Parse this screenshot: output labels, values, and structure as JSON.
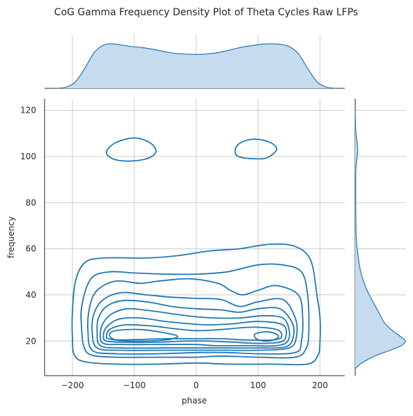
{
  "chart_data": {
    "type": "kde-joint",
    "title": "CoG Gamma Frequency Density Plot of Theta Cycles Raw LFPs",
    "xlabel": "phase",
    "ylabel": "frequency",
    "xlim": [
      -245,
      240
    ],
    "ylim": [
      5,
      125
    ],
    "xticks": [
      -200,
      -100,
      0,
      100,
      200
    ],
    "yticks": [
      20,
      40,
      60,
      80,
      100,
      120
    ],
    "xtick_labels": [
      "−200",
      "−100",
      "0",
      "100",
      "200"
    ],
    "ytick_labels": [
      "20",
      "40",
      "60",
      "80",
      "100",
      "120"
    ],
    "grid": true,
    "color": "#1f77b4",
    "fill_color": "#c6dbee",
    "main_contours": [
      [
        [
          -100,
          108
        ],
        [
          -75,
          106
        ],
        [
          -65,
          102
        ],
        [
          -80,
          99
        ],
        [
          -110,
          98
        ],
        [
          -135,
          99
        ],
        [
          -145,
          102
        ],
        [
          -130,
          106
        ],
        [
          -100,
          108
        ]
      ],
      [
        [
          95,
          107.5
        ],
        [
          120,
          106
        ],
        [
          130,
          103
        ],
        [
          115,
          99.5
        ],
        [
          95,
          99
        ],
        [
          68,
          100
        ],
        [
          63,
          103
        ],
        [
          72,
          106
        ],
        [
          95,
          107.5
        ]
      ],
      [
        [
          -200,
          21
        ],
        [
          -200,
          33
        ],
        [
          -195,
          46
        ],
        [
          -180,
          54
        ],
        [
          -150,
          56
        ],
        [
          -80,
          56
        ],
        [
          -30,
          57
        ],
        [
          20,
          59
        ],
        [
          70,
          60
        ],
        [
          120,
          62
        ],
        [
          160,
          61
        ],
        [
          185,
          55
        ],
        [
          195,
          40
        ],
        [
          200,
          30
        ],
        [
          200,
          20
        ],
        [
          197,
          14
        ],
        [
          180,
          10
        ],
        [
          120,
          10
        ],
        [
          50,
          10
        ],
        [
          0,
          10.5
        ],
        [
          -60,
          10
        ],
        [
          -130,
          10
        ],
        [
          -180,
          11
        ],
        [
          -197,
          14
        ],
        [
          -200,
          21
        ]
      ],
      [
        [
          -185,
          25
        ],
        [
          -185,
          35
        ],
        [
          -170,
          47
        ],
        [
          -140,
          50
        ],
        [
          -100,
          49.5
        ],
        [
          -50,
          49
        ],
        [
          0,
          49
        ],
        [
          50,
          50
        ],
        [
          100,
          53
        ],
        [
          140,
          53
        ],
        [
          170,
          50
        ],
        [
          180,
          40
        ],
        [
          182,
          25
        ],
        [
          178,
          17
        ],
        [
          160,
          13
        ],
        [
          100,
          13
        ],
        [
          40,
          13.5
        ],
        [
          0,
          13
        ],
        [
          -60,
          13
        ],
        [
          -130,
          13
        ],
        [
          -170,
          14
        ],
        [
          -182,
          18
        ],
        [
          -185,
          25
        ]
      ],
      [
        [
          -175,
          25
        ],
        [
          -172,
          35
        ],
        [
          -160,
          42
        ],
        [
          -130,
          46
        ],
        [
          -90,
          45
        ],
        [
          -60,
          46
        ],
        [
          -10,
          47
        ],
        [
          35,
          45
        ],
        [
          55,
          42
        ],
        [
          75,
          40
        ],
        [
          100,
          42
        ],
        [
          130,
          44
        ],
        [
          165,
          40
        ],
        [
          172,
          30
        ],
        [
          170,
          20
        ],
        [
          160,
          15
        ],
        [
          100,
          14.5
        ],
        [
          50,
          15
        ],
        [
          0,
          15
        ],
        [
          -60,
          14.5
        ],
        [
          -130,
          14.5
        ],
        [
          -168,
          16
        ],
        [
          -175,
          25
        ]
      ],
      [
        [
          -168,
          24
        ],
        [
          -165,
          32
        ],
        [
          -150,
          38
        ],
        [
          -120,
          41
        ],
        [
          -80,
          40
        ],
        [
          -40,
          39
        ],
        [
          0,
          38.5
        ],
        [
          40,
          38
        ],
        [
          70,
          35
        ],
        [
          100,
          37
        ],
        [
          140,
          38
        ],
        [
          160,
          30
        ],
        [
          162,
          22
        ],
        [
          150,
          17
        ],
        [
          100,
          16
        ],
        [
          50,
          16
        ],
        [
          0,
          16
        ],
        [
          -50,
          16
        ],
        [
          -120,
          16
        ],
        [
          -160,
          17
        ],
        [
          -168,
          24
        ]
      ],
      [
        [
          -160,
          24
        ],
        [
          -158,
          30
        ],
        [
          -145,
          35
        ],
        [
          -120,
          37.5
        ],
        [
          -80,
          37
        ],
        [
          -40,
          35
        ],
        [
          0,
          34
        ],
        [
          40,
          33.5
        ],
        [
          70,
          32.5
        ],
        [
          100,
          34
        ],
        [
          135,
          34
        ],
        [
          155,
          28
        ],
        [
          157,
          22
        ],
        [
          145,
          17.5
        ],
        [
          100,
          17
        ],
        [
          50,
          17
        ],
        [
          0,
          17
        ],
        [
          -50,
          17
        ],
        [
          -120,
          17
        ],
        [
          -155,
          18
        ],
        [
          -160,
          24
        ]
      ],
      [
        [
          -155,
          23
        ],
        [
          -150,
          28
        ],
        [
          -135,
          32
        ],
        [
          -110,
          34
        ],
        [
          -70,
          33
        ],
        [
          -30,
          31.5
        ],
        [
          0,
          30.5
        ],
        [
          30,
          30
        ],
        [
          70,
          30
        ],
        [
          110,
          31
        ],
        [
          140,
          30
        ],
        [
          150,
          25
        ],
        [
          148,
          20
        ],
        [
          130,
          18
        ],
        [
          80,
          18
        ],
        [
          30,
          18
        ],
        [
          0,
          18.5
        ],
        [
          -50,
          18.5
        ],
        [
          -120,
          18.5
        ],
        [
          -150,
          19
        ],
        [
          -155,
          23
        ]
      ],
      [
        [
          -150,
          22
        ],
        [
          -145,
          26
        ],
        [
          -125,
          29.5
        ],
        [
          -90,
          30
        ],
        [
          -50,
          28.5
        ],
        [
          -10,
          27.5
        ],
        [
          20,
          27
        ],
        [
          60,
          27.5
        ],
        [
          100,
          28.5
        ],
        [
          140,
          27
        ],
        [
          145,
          22
        ],
        [
          135,
          19.5
        ],
        [
          100,
          19
        ],
        [
          60,
          19.5
        ],
        [
          20,
          20
        ],
        [
          -20,
          20
        ],
        [
          -60,
          19.5
        ],
        [
          -120,
          19.5
        ],
        [
          -145,
          20
        ],
        [
          -150,
          22
        ]
      ],
      [
        [
          -145,
          22
        ],
        [
          -140,
          25
        ],
        [
          -115,
          27
        ],
        [
          -70,
          26.5
        ],
        [
          -40,
          25.5
        ],
        [
          0,
          24.5
        ],
        [
          40,
          25
        ],
        [
          90,
          26
        ],
        [
          130,
          25
        ],
        [
          138,
          22
        ],
        [
          125,
          20.5
        ],
        [
          80,
          20.5
        ],
        [
          40,
          21
        ],
        [
          0,
          21
        ],
        [
          -50,
          21
        ],
        [
          -120,
          20.5
        ],
        [
          -142,
          21
        ],
        [
          -145,
          22
        ]
      ],
      [
        [
          -140,
          22.5
        ],
        [
          -130,
          24.5
        ],
        [
          -90,
          25
        ],
        [
          -50,
          23.5
        ],
        [
          -30,
          22
        ],
        [
          -50,
          20.5
        ],
        [
          -100,
          20
        ],
        [
          -130,
          20.5
        ],
        [
          -140,
          22.5
        ]
      ],
      [
        [
          95,
          23
        ],
        [
          110,
          24
        ],
        [
          125,
          23.5
        ],
        [
          133,
          22
        ],
        [
          125,
          20.5
        ],
        [
          110,
          20
        ],
        [
          97,
          21
        ],
        [
          95,
          23
        ]
      ]
    ],
    "top_marginal": {
      "label": "phase",
      "x": [
        -225,
        -210,
        -195,
        -180,
        -165,
        -150,
        -135,
        -120,
        -105,
        -90,
        -75,
        -60,
        -45,
        -30,
        -15,
        0,
        15,
        30,
        45,
        60,
        75,
        90,
        105,
        120,
        135,
        150,
        165,
        180,
        195,
        210,
        225
      ],
      "density": [
        0.0,
        0.03,
        0.15,
        0.45,
        0.8,
        0.97,
        1.0,
        0.97,
        0.94,
        0.92,
        0.89,
        0.85,
        0.81,
        0.78,
        0.77,
        0.76,
        0.77,
        0.79,
        0.83,
        0.88,
        0.93,
        0.96,
        0.99,
        1.0,
        0.99,
        0.94,
        0.78,
        0.45,
        0.15,
        0.03,
        0.0
      ]
    },
    "right_marginal": {
      "label": "frequency",
      "y": [
        8,
        10,
        12,
        14,
        16,
        18,
        20,
        22,
        25,
        28,
        32,
        36,
        40,
        45,
        50,
        55,
        60,
        65,
        70,
        80,
        90,
        95,
        100,
        103,
        106,
        110,
        115,
        120
      ],
      "density": [
        0.0,
        0.1,
        0.25,
        0.45,
        0.7,
        0.92,
        1.0,
        0.9,
        0.72,
        0.58,
        0.48,
        0.38,
        0.28,
        0.18,
        0.11,
        0.07,
        0.04,
        0.02,
        0.015,
        0.01,
        0.01,
        0.015,
        0.04,
        0.05,
        0.04,
        0.015,
        0.005,
        0.0
      ]
    }
  }
}
